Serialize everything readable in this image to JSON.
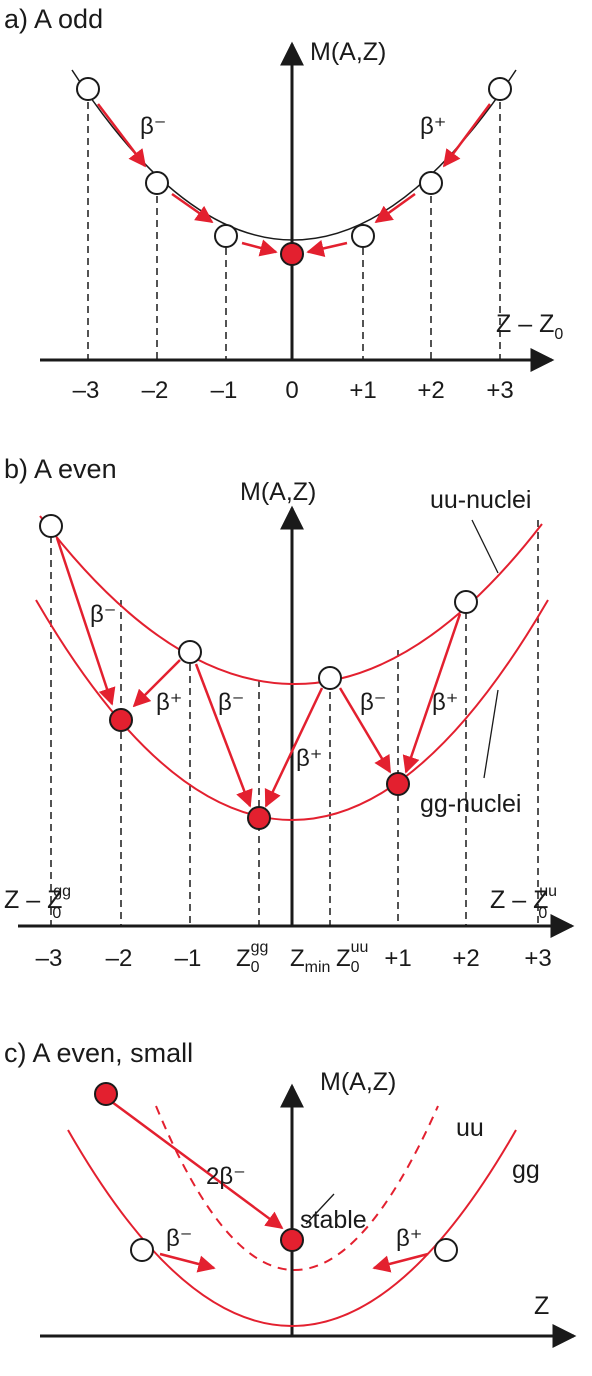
{
  "colors": {
    "curve": "#e3202f",
    "axis": "#1a1a1a",
    "stable_fill": "#e3202f",
    "open_fill": "#ffffff"
  },
  "panel_a": {
    "heading": "a) A odd",
    "y_axis_label": "M(A,Z)",
    "x_axis_label": "Z – Z",
    "x_axis_label_sub": "0",
    "ticks": [
      "–3",
      "–2",
      "–1",
      "0",
      "+1",
      "+2",
      "+3"
    ],
    "beta_minus": "β⁻",
    "beta_plus": "β⁺"
  },
  "panel_b": {
    "heading": "b) A even",
    "y_axis_label": "M(A,Z)",
    "uu_label": "uu-nuclei",
    "gg_label": "gg-nuclei",
    "left_axis_label": "Z – Z",
    "left_axis_sub": "0",
    "left_axis_sup": "gg",
    "right_axis_label": "Z – Z",
    "right_axis_sub": "0",
    "right_axis_sup": "uu",
    "ticks": [
      "–3",
      "–2",
      "–1",
      "+1",
      "+2",
      "+3"
    ],
    "z0gg_main": "Z",
    "z0gg_sub": "0",
    "z0gg_sup": "gg",
    "zmin_main": "Z",
    "zmin_sub": "min",
    "z0uu_main": "Z",
    "z0uu_sub": "0",
    "z0uu_sup": "uu",
    "beta_minus": "β⁻",
    "beta_plus": "β⁺"
  },
  "panel_c": {
    "heading": "c) A even, small",
    "y_axis_label": "M(A,Z)",
    "x_axis_label": "Z",
    "uu_label": "uu",
    "gg_label": "gg",
    "double_beta": "2β⁻",
    "stable_label": "stable",
    "beta_minus": "β⁻",
    "beta_plus": "β⁺"
  }
}
